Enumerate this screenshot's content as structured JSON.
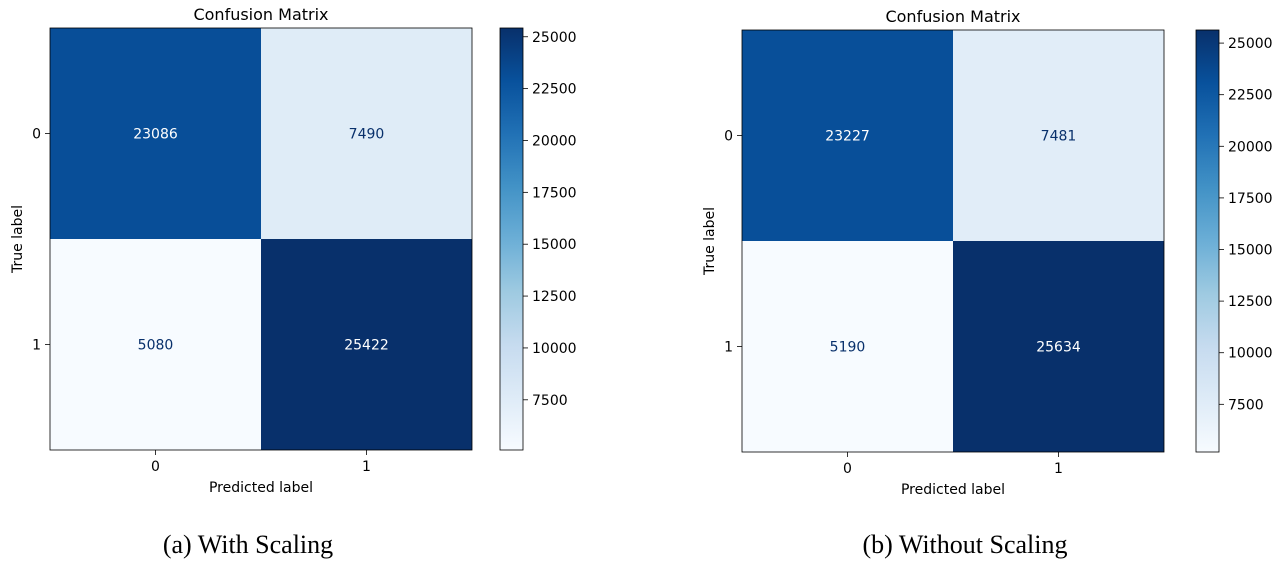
{
  "chart_data": [
    {
      "type": "heatmap",
      "title": "Confusion Matrix",
      "xlabel": "Predicted label",
      "ylabel": "True label",
      "x_ticks": [
        "0",
        "1"
      ],
      "y_ticks": [
        "0",
        "1"
      ],
      "values": [
        [
          23086,
          7490
        ],
        [
          5080,
          25422
        ]
      ],
      "colormap": "Blues",
      "colorbar_ticks": [
        "7500",
        "10000",
        "12500",
        "15000",
        "17500",
        "20000",
        "22500",
        "25000"
      ],
      "colorbar_range": [
        5080,
        25422
      ],
      "caption": "(a) With Scaling"
    },
    {
      "type": "heatmap",
      "title": "Confusion Matrix",
      "xlabel": "Predicted label",
      "ylabel": "True label",
      "x_ticks": [
        "0",
        "1"
      ],
      "y_ticks": [
        "0",
        "1"
      ],
      "values": [
        [
          23227,
          7481
        ],
        [
          5190,
          25634
        ]
      ],
      "colormap": "Blues",
      "colorbar_ticks": [
        "7500",
        "10000",
        "12500",
        "15000",
        "17500",
        "20000",
        "22500",
        "25000"
      ],
      "colorbar_range": [
        5190,
        25634
      ],
      "caption": "(b) Without Scaling"
    }
  ]
}
